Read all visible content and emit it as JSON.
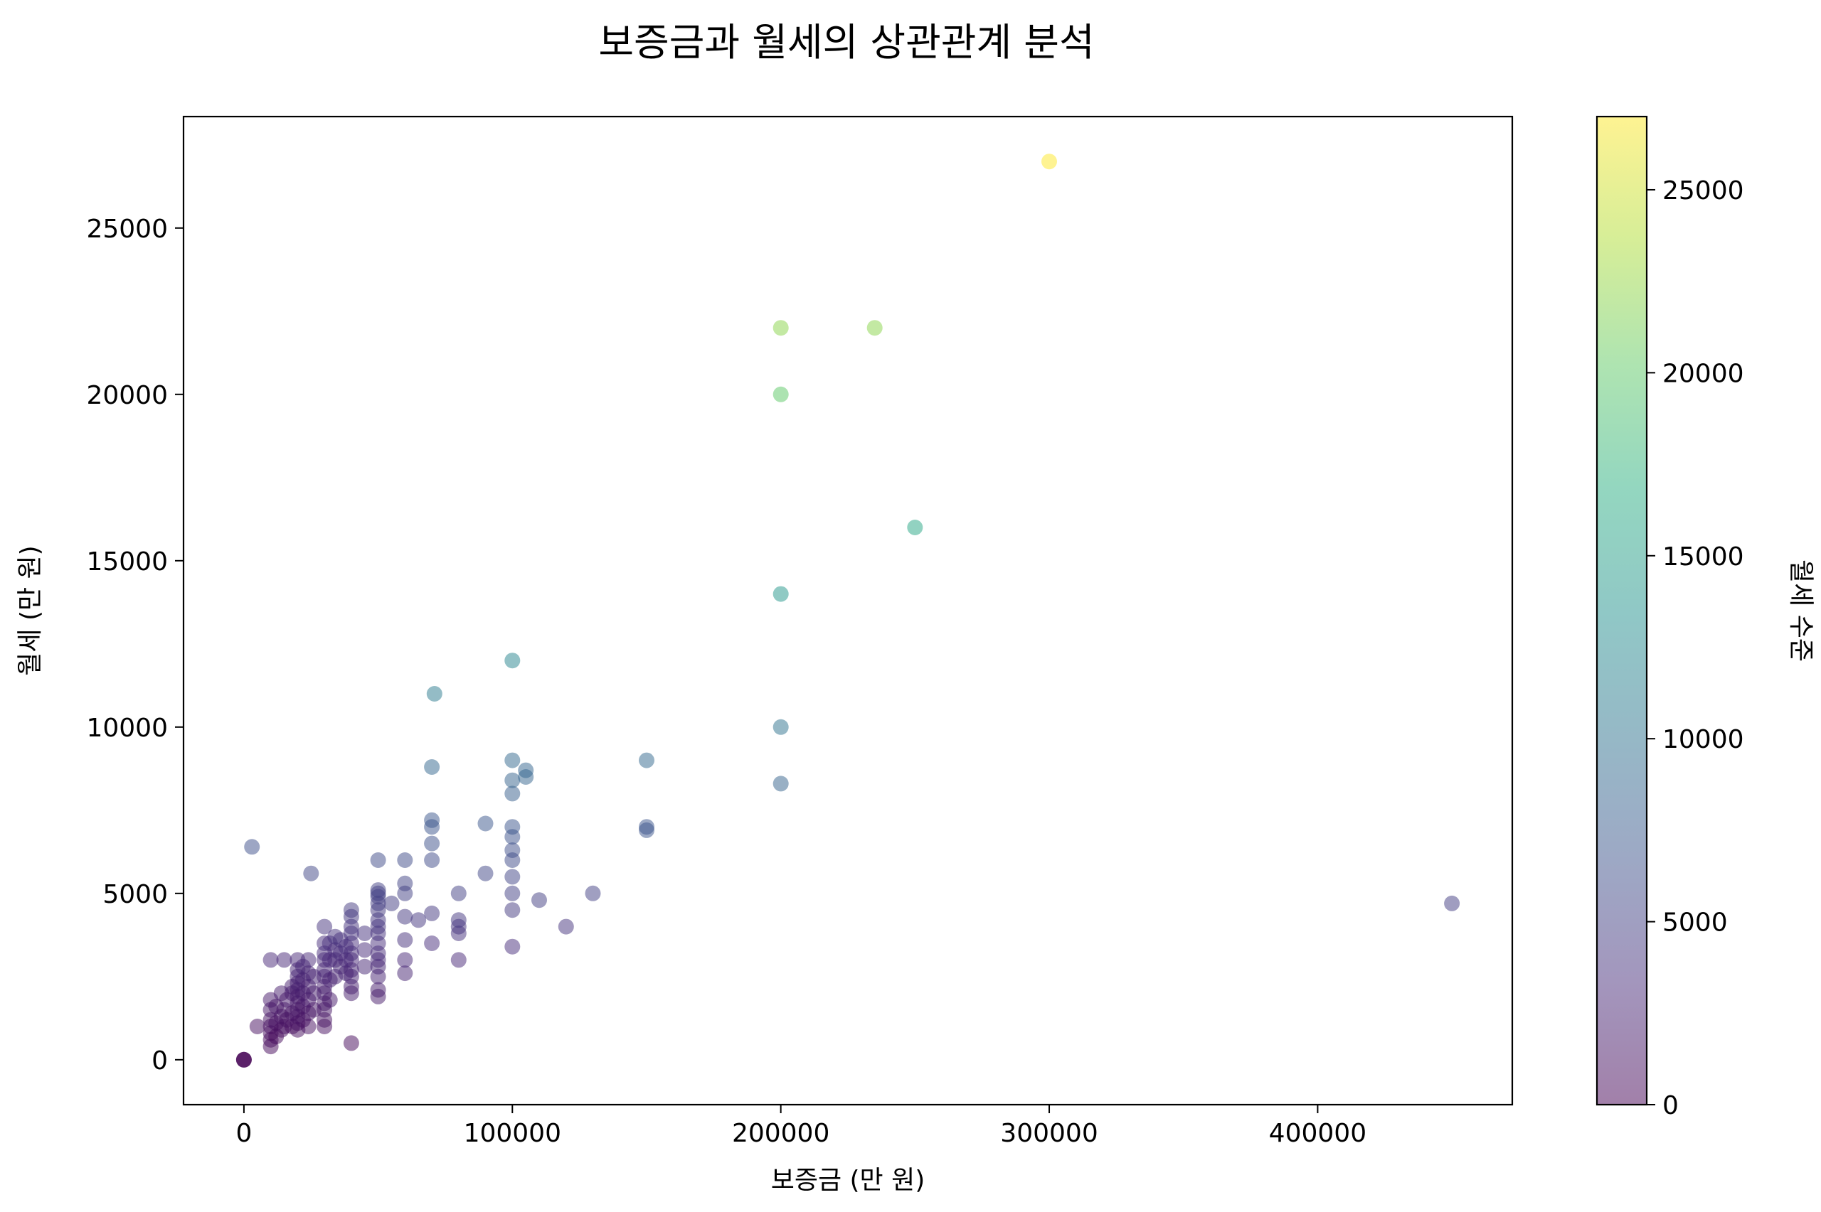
{
  "chart_data": {
    "type": "scatter",
    "title": "보증금과 월세의 상관관계 분석",
    "xlabel": "보증금 (만 원)",
    "ylabel": "월세 (만 원)",
    "xlim": [
      -22500,
      472500
    ],
    "ylim": [
      -1350,
      28350
    ],
    "xticks": [
      0,
      100000,
      200000,
      300000,
      400000
    ],
    "yticks": [
      0,
      5000,
      10000,
      15000,
      20000,
      25000
    ],
    "grid": false,
    "colormap": "viridis",
    "point_alpha": 0.5,
    "colorbar": {
      "label": "월세 수준",
      "range": [
        0,
        27000
      ],
      "ticks": [
        0,
        5000,
        10000,
        15000,
        20000,
        25000
      ]
    },
    "points": [
      [
        0,
        0
      ],
      [
        0,
        0
      ],
      [
        0,
        0
      ],
      [
        5000,
        1000
      ],
      [
        3000,
        6400
      ],
      [
        25000,
        5600
      ],
      [
        40000,
        500
      ],
      [
        10000,
        400
      ],
      [
        10000,
        600
      ],
      [
        10000,
        800
      ],
      [
        10000,
        1000
      ],
      [
        10000,
        1200
      ],
      [
        10000,
        1500
      ],
      [
        10000,
        1800
      ],
      [
        10000,
        3000
      ],
      [
        12000,
        700
      ],
      [
        12000,
        1100
      ],
      [
        12000,
        1600
      ],
      [
        14000,
        900
      ],
      [
        14000,
        1300
      ],
      [
        14000,
        2000
      ],
      [
        15000,
        3000
      ],
      [
        15000,
        1000
      ],
      [
        15000,
        1500
      ],
      [
        16000,
        1200
      ],
      [
        16000,
        1800
      ],
      [
        18000,
        1000
      ],
      [
        18000,
        1400
      ],
      [
        18000,
        2000
      ],
      [
        18000,
        2200
      ],
      [
        20000,
        900
      ],
      [
        20000,
        1100
      ],
      [
        20000,
        1300
      ],
      [
        20000,
        1500
      ],
      [
        20000,
        1700
      ],
      [
        20000,
        1900
      ],
      [
        20000,
        2100
      ],
      [
        20000,
        2300
      ],
      [
        20000,
        2500
      ],
      [
        20000,
        2700
      ],
      [
        20000,
        3000
      ],
      [
        22000,
        1200
      ],
      [
        22000,
        1600
      ],
      [
        22000,
        2000
      ],
      [
        22000,
        2400
      ],
      [
        22000,
        2800
      ],
      [
        24000,
        1000
      ],
      [
        24000,
        1400
      ],
      [
        24000,
        1800
      ],
      [
        24000,
        2200
      ],
      [
        24000,
        2600
      ],
      [
        24000,
        3000
      ],
      [
        26000,
        1500
      ],
      [
        26000,
        2000
      ],
      [
        26000,
        2500
      ],
      [
        30000,
        1000
      ],
      [
        30000,
        1200
      ],
      [
        30000,
        1500
      ],
      [
        30000,
        1700
      ],
      [
        30000,
        2000
      ],
      [
        30000,
        2200
      ],
      [
        30000,
        2500
      ],
      [
        30000,
        2700
      ],
      [
        30000,
        3000
      ],
      [
        30000,
        3200
      ],
      [
        30000,
        3500
      ],
      [
        30000,
        4000
      ],
      [
        32000,
        1800
      ],
      [
        32000,
        2400
      ],
      [
        32000,
        3000
      ],
      [
        32000,
        3500
      ],
      [
        34000,
        2500
      ],
      [
        34000,
        3000
      ],
      [
        34000,
        3300
      ],
      [
        34000,
        3700
      ],
      [
        36000,
        2800
      ],
      [
        36000,
        3200
      ],
      [
        36000,
        3600
      ],
      [
        38000,
        2600
      ],
      [
        38000,
        3000
      ],
      [
        38000,
        3400
      ],
      [
        40000,
        2000
      ],
      [
        40000,
        2200
      ],
      [
        40000,
        2500
      ],
      [
        40000,
        2700
      ],
      [
        40000,
        3000
      ],
      [
        40000,
        3200
      ],
      [
        40000,
        3500
      ],
      [
        40000,
        3800
      ],
      [
        40000,
        4000
      ],
      [
        40000,
        4300
      ],
      [
        40000,
        4500
      ],
      [
        45000,
        2800
      ],
      [
        45000,
        3300
      ],
      [
        45000,
        3800
      ],
      [
        50000,
        1900
      ],
      [
        50000,
        2100
      ],
      [
        50000,
        2500
      ],
      [
        50000,
        2800
      ],
      [
        50000,
        3000
      ],
      [
        50000,
        3200
      ],
      [
        50000,
        3500
      ],
      [
        50000,
        3800
      ],
      [
        50000,
        4000
      ],
      [
        50000,
        4200
      ],
      [
        50000,
        4500
      ],
      [
        50000,
        4700
      ],
      [
        50000,
        4900
      ],
      [
        50000,
        5000
      ],
      [
        50000,
        5100
      ],
      [
        50000,
        6000
      ],
      [
        55000,
        4700
      ],
      [
        60000,
        2600
      ],
      [
        60000,
        3000
      ],
      [
        60000,
        3600
      ],
      [
        60000,
        4300
      ],
      [
        60000,
        5000
      ],
      [
        60000,
        5300
      ],
      [
        60000,
        6000
      ],
      [
        65000,
        4200
      ],
      [
        70000,
        3500
      ],
      [
        70000,
        4400
      ],
      [
        70000,
        6000
      ],
      [
        70000,
        6500
      ],
      [
        70000,
        7000
      ],
      [
        70000,
        7200
      ],
      [
        70000,
        8800
      ],
      [
        71000,
        11000
      ],
      [
        80000,
        3000
      ],
      [
        80000,
        3800
      ],
      [
        80000,
        4000
      ],
      [
        80000,
        4200
      ],
      [
        80000,
        5000
      ],
      [
        90000,
        5600
      ],
      [
        90000,
        7100
      ],
      [
        100000,
        3400
      ],
      [
        100000,
        4500
      ],
      [
        100000,
        5000
      ],
      [
        100000,
        5500
      ],
      [
        100000,
        6000
      ],
      [
        100000,
        6300
      ],
      [
        100000,
        6700
      ],
      [
        100000,
        7000
      ],
      [
        100000,
        8000
      ],
      [
        100000,
        8400
      ],
      [
        100000,
        9000
      ],
      [
        100000,
        12000
      ],
      [
        105000,
        8500
      ],
      [
        105000,
        8700
      ],
      [
        110000,
        4800
      ],
      [
        120000,
        4000
      ],
      [
        130000,
        5000
      ],
      [
        150000,
        6900
      ],
      [
        150000,
        7000
      ],
      [
        150000,
        9000
      ],
      [
        200000,
        8300
      ],
      [
        200000,
        10000
      ],
      [
        200000,
        14000
      ],
      [
        200000,
        20000
      ],
      [
        200000,
        22000
      ],
      [
        235000,
        22000
      ],
      [
        250000,
        16000
      ],
      [
        300000,
        27000
      ],
      [
        450000,
        4700
      ]
    ]
  }
}
